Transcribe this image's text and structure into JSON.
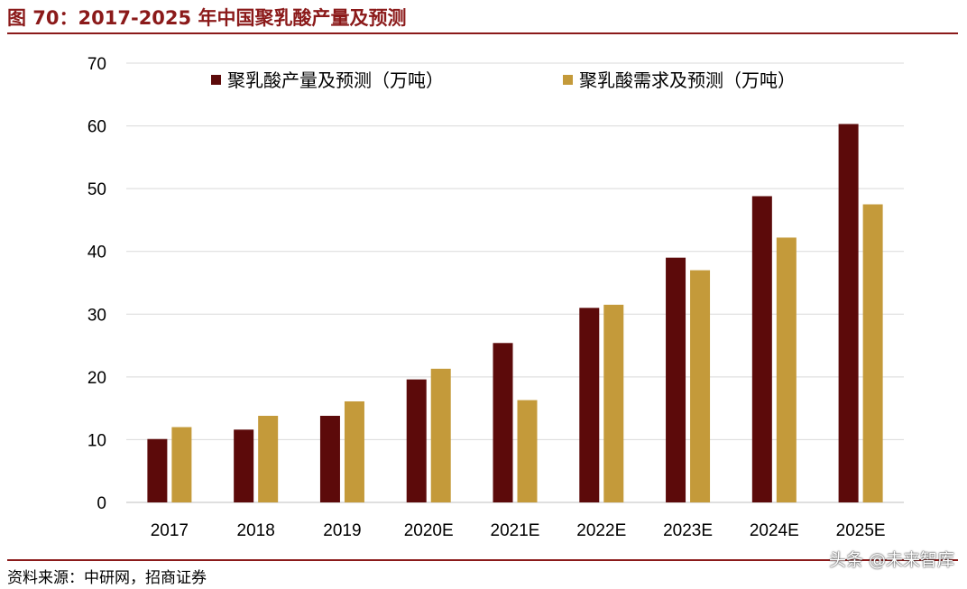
{
  "figure": {
    "title": "图 70：2017-2025 年中国聚乳酸产量及预测",
    "source": "资料来源：中研网，招商证券",
    "watermark": "头条 @未来智库"
  },
  "colors": {
    "production": "#5c0a0a",
    "demand": "#c49a3a",
    "grid": "#d9d9d9",
    "brand": "#8b1a1a"
  },
  "chart_data": {
    "type": "bar",
    "title": "",
    "xlabel": "",
    "ylabel": "",
    "categories": [
      "2017",
      "2018",
      "2019",
      "2020E",
      "2021E",
      "2022E",
      "2023E",
      "2024E",
      "2025E"
    ],
    "series": [
      {
        "name": "聚乳酸产量及预测（万吨）",
        "values": [
          10.1,
          11.6,
          13.8,
          19.6,
          25.4,
          31.0,
          39.0,
          48.8,
          60.3
        ]
      },
      {
        "name": "聚乳酸需求及预测（万吨）",
        "values": [
          12.0,
          13.8,
          16.1,
          21.3,
          16.3,
          31.5,
          37.0,
          42.2,
          47.5
        ]
      }
    ],
    "ylim": [
      0,
      70
    ],
    "yticks": [
      "0",
      "10",
      "20",
      "30",
      "40",
      "50",
      "60",
      "70"
    ],
    "grid": true,
    "legend_position": "top"
  }
}
